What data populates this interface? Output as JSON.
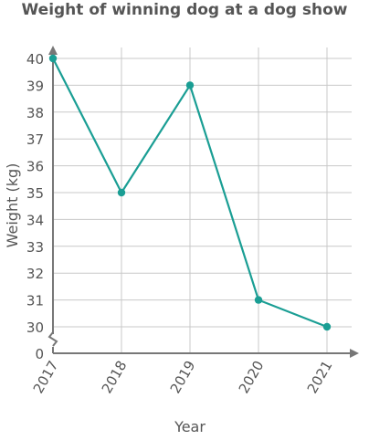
{
  "chart_data": {
    "type": "line",
    "title": "Weight of winning dog at a dog show",
    "xlabel": "Year",
    "ylabel": "Weight (kg)",
    "categories": [
      "2017",
      "2018",
      "2019",
      "2020",
      "2021"
    ],
    "series": [
      {
        "values": [
          40,
          35,
          39,
          31,
          30
        ],
        "color": "#1a9e94"
      }
    ],
    "yticks": [
      "0",
      "30",
      "31",
      "32",
      "33",
      "34",
      "35",
      "36",
      "37",
      "38",
      "39",
      "40"
    ],
    "ylim": [
      30,
      40
    ],
    "y_axis_break": true,
    "grid": true,
    "colors": {
      "line": "#1a9e94",
      "grid": "#c8c8c8",
      "axis": "#777777",
      "text": "#555555"
    }
  }
}
